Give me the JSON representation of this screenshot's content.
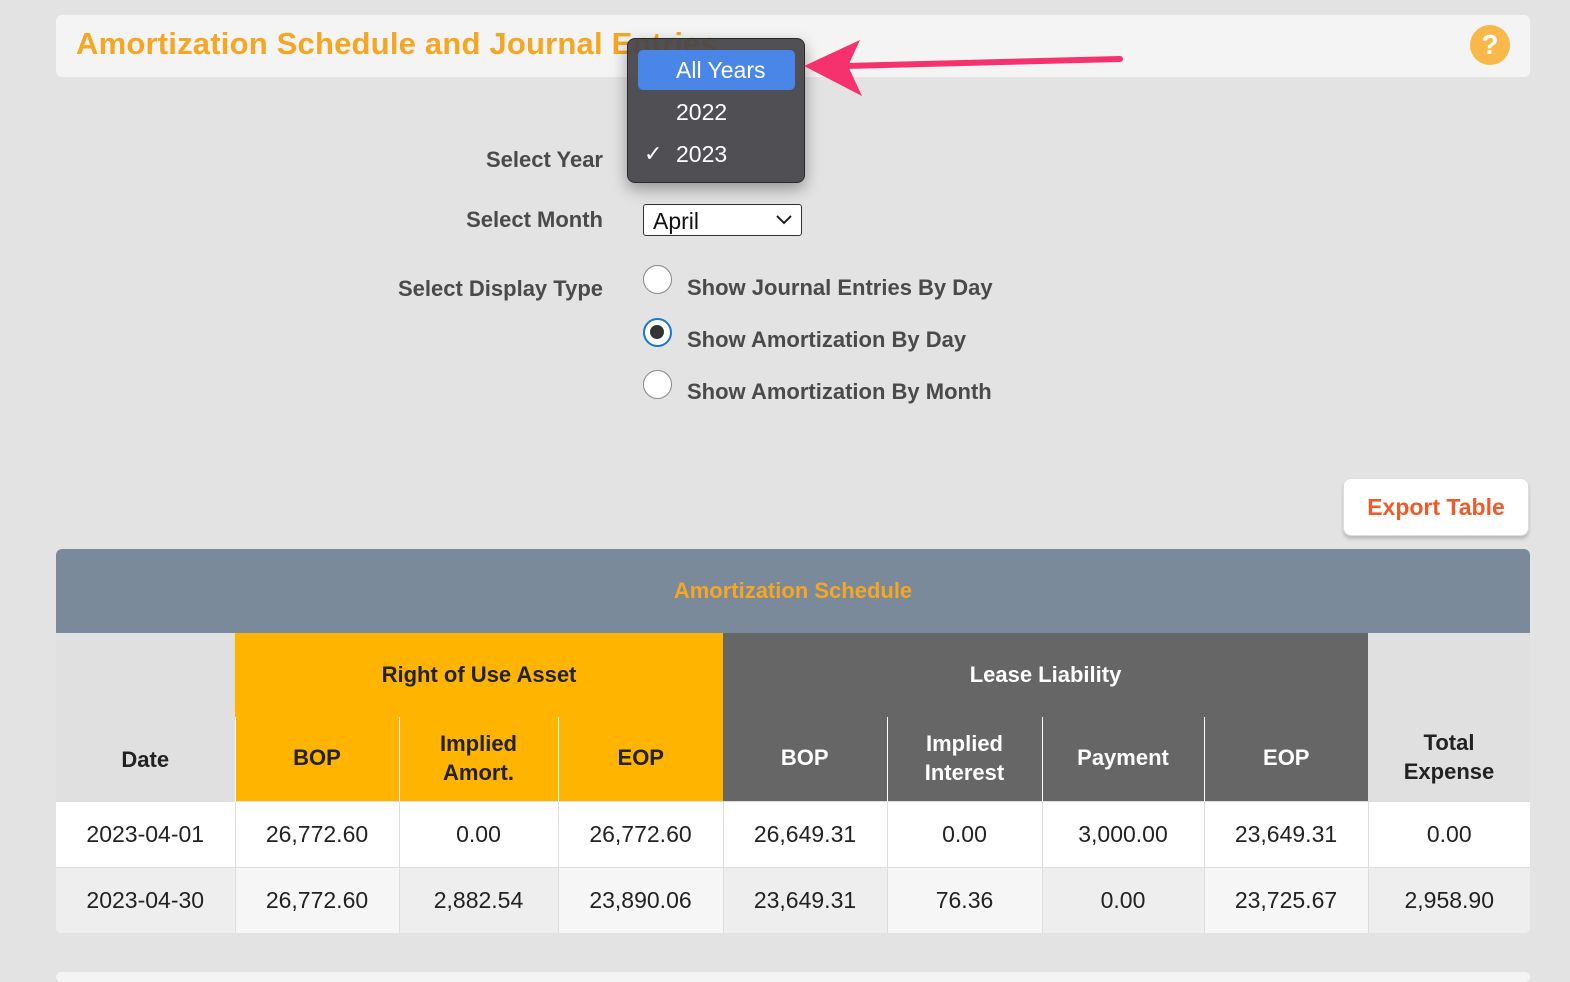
{
  "header": {
    "title": "Amortization Schedule and Journal Entries",
    "help_label": "?"
  },
  "form": {
    "year_label": "Select Year",
    "month_label": "Select Month",
    "month_value": "April",
    "display_type_label": "Select Display Type",
    "display_options": [
      {
        "label": "Show Journal Entries By Day",
        "checked": false
      },
      {
        "label": "Show Amortization By Day",
        "checked": true
      },
      {
        "label": "Show Amortization By Month",
        "checked": false
      }
    ]
  },
  "year_dropdown": {
    "options": [
      "All Years",
      "2022",
      "2023"
    ],
    "highlighted": "All Years",
    "checked": "2023",
    "check_mark": "✓"
  },
  "export_label": "Export Table",
  "table": {
    "caption": "Amortization Schedule",
    "date_header": "Date",
    "rou_group": "Right of Use Asset",
    "ll_group": "Lease Liability",
    "total_header": "Total Expense",
    "rou_columns": [
      "BOP",
      "Implied Amort.",
      "EOP"
    ],
    "ll_columns": [
      "BOP",
      "Implied Interest",
      "Payment",
      "EOP"
    ],
    "rows": [
      [
        "2023-04-01",
        "26,772.60",
        "0.00",
        "26,772.60",
        "26,649.31",
        "0.00",
        "3,000.00",
        "23,649.31",
        "0.00"
      ],
      [
        "2023-04-30",
        "26,772.60",
        "2,882.54",
        "23,890.06",
        "23,649.31",
        "76.36",
        "0.00",
        "23,725.67",
        "2,958.90"
      ]
    ]
  },
  "colors": {
    "accent": "#f5a623",
    "export": "#f05a28",
    "rou": "#ffb400",
    "ll": "#666666",
    "caption_bg": "#7b8a9b",
    "annotation_arrow": "#f5326e"
  }
}
